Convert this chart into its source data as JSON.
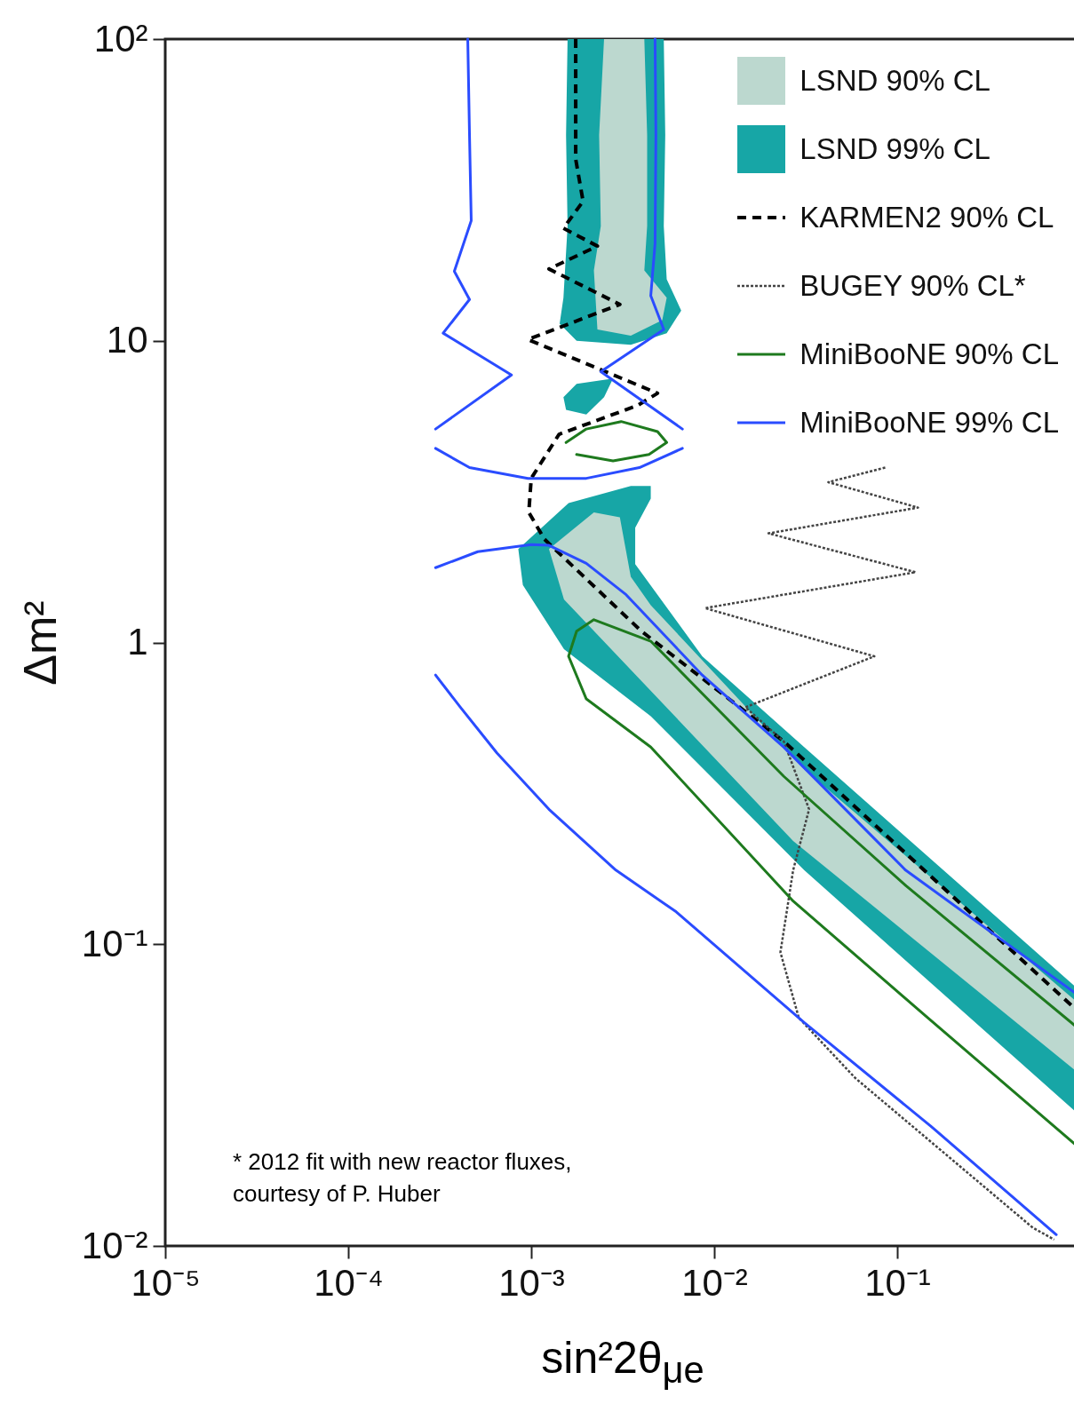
{
  "chart_data": {
    "type": "line",
    "xlabel": "sin²2θ$_{μe}$",
    "ylabel": "Δm²",
    "log": "xy",
    "xlim": [
      1e-05,
      1
    ],
    "ylim": [
      0.01,
      100
    ],
    "xticks": [
      {
        "value": 1e-05,
        "label": "10⁻⁵"
      },
      {
        "value": 0.0001,
        "label": "10⁻⁴"
      },
      {
        "value": 0.001,
        "label": "10⁻³"
      },
      {
        "value": 0.01,
        "label": "10⁻²"
      },
      {
        "value": 0.1,
        "label": "10⁻¹"
      }
    ],
    "yticks": [
      {
        "value": 0.01,
        "label": "10⁻²"
      },
      {
        "value": 0.1,
        "label": "10⁻¹"
      },
      1,
      10,
      {
        "value": 100,
        "label": "10²"
      }
    ],
    "legend": "top right",
    "annotations": [
      "* 2012 fit with new reactor fluxes, courtesy of P. Huber"
    ],
    "series": [
      {
        "name": "LSND 90% CL",
        "type": "area",
        "color": "#bcd8cf",
        "x": [
          0.0025,
          0.00235,
          0.0024,
          0.0022,
          0.0023,
          0.0035,
          0.0052,
          0.0055,
          0.00415,
          0.0043,
          0.0043,
          0.00415,
          null,
          0.0022,
          0.00305,
          0.0035,
          0.0045,
          0.031,
          1,
          1,
          0.027,
          0.00151,
          0.00125,
          0.0022
        ],
        "values": [
          100,
          48,
          24,
          17.1,
          10.9,
          10.4,
          11.7,
          13.9,
          17.1,
          24,
          48,
          100,
          null,
          2.7,
          2.6,
          1.65,
          1.33,
          0.38,
          0.063,
          0.037,
          0.22,
          1.39,
          2.04,
          2.7
        ]
      },
      {
        "name": "LSND 99% CL",
        "type": "area",
        "color": "#17a6a6",
        "x": [
          0.00158,
          0.00155,
          0.00158,
          0.0015,
          0.00143,
          0.00177,
          0.0035,
          0.0055,
          0.0066,
          0.0055,
          0.0053,
          0.0054,
          0.0053,
          null,
          0.0015,
          0.00177,
          0.0028,
          0.0025,
          0.002,
          0.00155,
          null,
          0.0035,
          0.0045,
          0.0045,
          0.0037,
          0.0037,
          0.0086,
          0.031,
          1,
          1,
          0.031,
          0.0045,
          0.00151,
          0.0009,
          0.00085,
          0.0016,
          0.0035
        ],
        "values": [
          100,
          48,
          24,
          13.9,
          11.4,
          10,
          9.7,
          10.6,
          12.6,
          16,
          24,
          48,
          100,
          null,
          6.5,
          7.2,
          7.5,
          6.5,
          5.7,
          5.9,
          null,
          3.3,
          3.3,
          3.0,
          2.4,
          1.82,
          0.9,
          0.45,
          0.07,
          0.027,
          0.176,
          0.57,
          0.95,
          1.55,
          2.04,
          2.9,
          3.3
        ]
      },
      {
        "name": "KARMEN2 90% CL",
        "color": "#000000",
        "line_style": "dashed",
        "x": [
          0.00175,
          0.00175,
          0.00192,
          0.0015,
          0.0023,
          0.00125,
          0.00305,
          0.00096,
          0.0049,
          0.0038,
          0.00142,
          0.001,
          0.00097,
          0.00118,
          0.004,
          0.024,
          1
        ],
        "values": [
          100,
          40,
          29,
          23.6,
          20.6,
          17.3,
          13.2,
          10.1,
          6.7,
          6.1,
          4.9,
          3.5,
          2.7,
          2.2,
          1.09,
          0.47,
          0.059
        ]
      },
      {
        "name": "BUGEY 90% CL*",
        "color": "#444444",
        "line_style": "dotted",
        "x": [
          0.086,
          0.042,
          0.13,
          0.0198,
          0.126,
          0.0089,
          0.075,
          0.0148,
          0.024,
          0.033,
          0.027,
          0.023,
          0.029,
          0.059,
          0.55,
          0.72
        ],
        "values": [
          3.8,
          3.4,
          2.8,
          2.3,
          1.71,
          1.3,
          0.9,
          0.61,
          0.47,
          0.28,
          0.176,
          0.094,
          0.057,
          0.036,
          0.0115,
          0.0105
        ]
      },
      {
        "name": "MiniBooNE 90% CL",
        "color": "#1e7a1e",
        "line_style": "solid",
        "x": [
          0.00155,
          0.002,
          0.0031,
          0.0049,
          0.0055,
          0.0044,
          0.0028,
          0.00177,
          null,
          1,
          0.112,
          0.024,
          0.0045,
          0.0022,
          0.00177,
          0.0016,
          0.002,
          0.0045,
          0.027,
          0.147,
          1
        ],
        "values": [
          4.6,
          5.1,
          5.4,
          5.0,
          4.6,
          4.2,
          4.0,
          4.2,
          null,
          0.052,
          0.156,
          0.36,
          1.01,
          1.19,
          1.09,
          0.9,
          0.65,
          0.45,
          0.139,
          0.057,
          0.021
        ]
      },
      {
        "name": "MiniBooNE 99% CL",
        "color": "#2a4cff",
        "line_style": "solid",
        "x": [
          0.00045,
          0.00046,
          0.00047,
          0.00038,
          0.00046,
          0.00033,
          0.00078,
          0.0003,
          null,
          0.00475,
          0.0048,
          0.00475,
          0.0045,
          0.0053,
          0.0024,
          0.0067,
          null,
          0.0003,
          0.00046,
          0.00096,
          0.002,
          0.0039,
          0.0067,
          null,
          0.0003,
          0.00051,
          0.001,
          0.00125,
          0.002,
          0.0033,
          0.0086,
          0.024,
          0.111,
          1,
          null,
          0.0003,
          0.00041,
          0.00065,
          0.00125,
          0.0029,
          0.0062,
          0.031,
          0.152,
          0.74
        ],
        "values": [
          100,
          48,
          25,
          17,
          13.7,
          10.6,
          7.7,
          5.1,
          null,
          100,
          48,
          21,
          14.1,
          10.9,
          7.9,
          5.1,
          null,
          4.4,
          3.8,
          3.5,
          3.5,
          3.8,
          4.4,
          null,
          1.77,
          2.0,
          2.11,
          2.1,
          1.83,
          1.44,
          0.78,
          0.45,
          0.176,
          0.067,
          null,
          0.78,
          0.61,
          0.43,
          0.28,
          0.176,
          0.128,
          0.055,
          0.025,
          0.0109
        ]
      }
    ]
  }
}
